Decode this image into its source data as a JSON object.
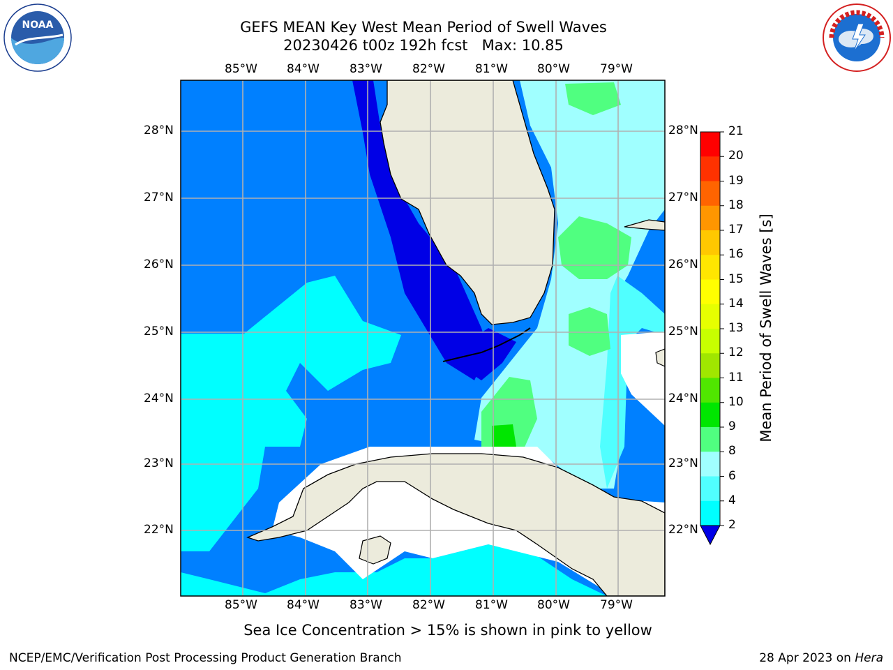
{
  "title": {
    "line1": "GEFS MEAN Key West Mean Period of Swell Waves",
    "line2": "20230426 t00z 192h fcst   Max: 10.85"
  },
  "logos": {
    "left": {
      "text": "NOAA",
      "ring_text": "NATIONAL OCEANIC AND ATMOSPHERIC ADMINISTRATION · U.S. DEPARTMENT OF COMMERCE"
    },
    "right": {
      "ring_text": "NATIONAL WEATHER SERVICE"
    }
  },
  "map": {
    "lon_labels": [
      "85°W",
      "84°W",
      "83°W",
      "82°W",
      "81°W",
      "80°W",
      "79°W"
    ],
    "lat_labels": [
      "28°N",
      "27°N",
      "26°N",
      "25°N",
      "24°N",
      "23°N",
      "22°N"
    ],
    "land_color": "#ecebdc",
    "background_color": "#0080ff",
    "grid_color": "#b0b0b0"
  },
  "colorbar": {
    "label": "Mean Period of Swell Waves [s]",
    "ticks": [
      "2",
      "4",
      "6",
      "8",
      "9",
      "10",
      "11",
      "12",
      "13",
      "14",
      "15",
      "16",
      "17",
      "18",
      "19",
      "20",
      "21"
    ],
    "colors": [
      "#0000e6",
      "#0080ff",
      "#00ffff",
      "#50ffff",
      "#a0ffff",
      "#50ff80",
      "#00e600",
      "#50e600",
      "#a0e600",
      "#c8ff00",
      "#e6ff00",
      "#ffff00",
      "#ffe600",
      "#ffc800",
      "#ff9600",
      "#ff6400",
      "#ff3200",
      "#ff0000"
    ]
  },
  "ice_note": "Sea Ice Concentration > 15% is shown in pink to yellow",
  "footer": {
    "left": "NCEP/EMC/Verification Post Processing Product Generation Branch",
    "right_date": "28 Apr 2023 on ",
    "right_host": "Hera"
  }
}
